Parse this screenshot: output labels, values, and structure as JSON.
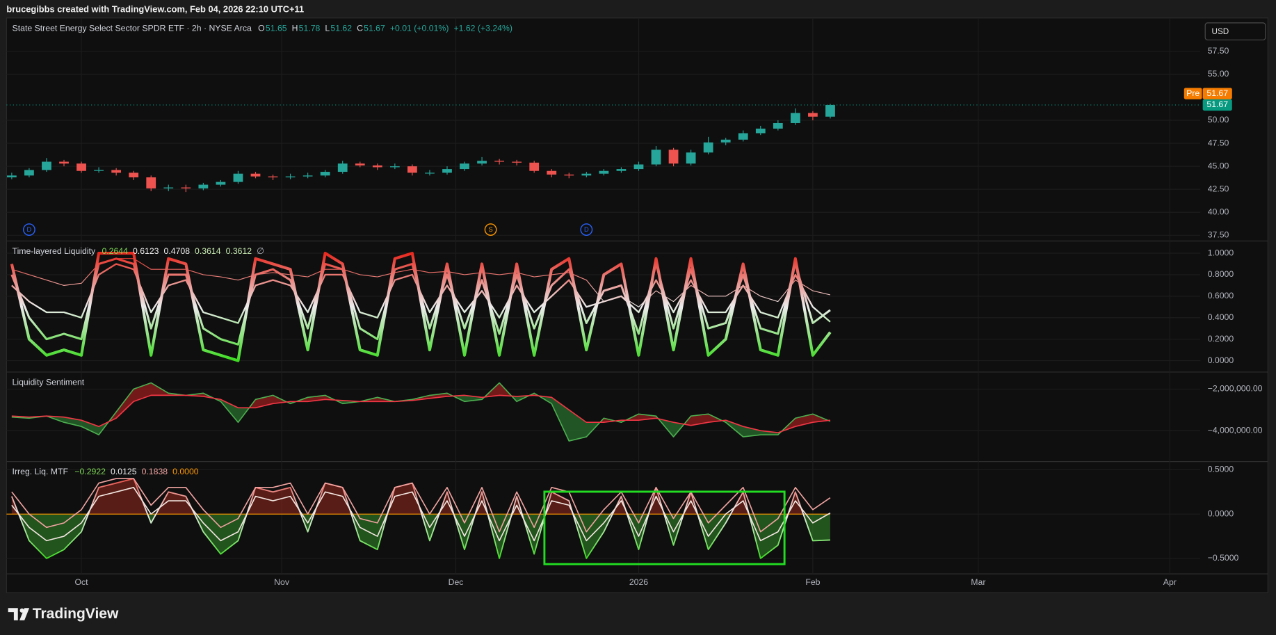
{
  "header": {
    "caption": "brucegibbs created with TradingView.com, Feb 04, 2026 22:10 UTC+11"
  },
  "toolbar": {
    "currency": "USD"
  },
  "footer": {
    "brand": "TradingView"
  },
  "chart_data": [
    {
      "type": "candlestick",
      "title": "State Street Energy Select Sector SPDR ETF · 2h · NYSE Arca",
      "ohlc_legend": [
        {
          "label": "O",
          "value": "51.65"
        },
        {
          "label": "H",
          "value": "51.78"
        },
        {
          "label": "L",
          "value": "51.62"
        },
        {
          "label": "C",
          "value": "51.67"
        }
      ],
      "changes": [
        "+0.01 (+0.01%)",
        "+1.62 (+3.24%)"
      ],
      "legend_value_color": "#26a69a",
      "x": [
        -8,
        -6,
        -4,
        -2,
        0,
        2,
        4,
        6,
        8,
        10,
        12,
        14,
        16,
        18,
        20,
        22,
        24,
        26,
        28,
        30,
        32,
        34,
        36,
        38,
        40,
        42,
        44,
        46,
        48,
        50,
        52,
        54,
        56,
        58,
        60,
        62,
        64,
        66,
        68,
        70,
        72,
        74,
        76,
        78,
        80,
        82,
        84,
        86
      ],
      "open": [
        43.8,
        44.0,
        44.6,
        45.5,
        45.3,
        44.5,
        44.6,
        44.3,
        43.8,
        42.6,
        42.7,
        42.6,
        43.0,
        43.3,
        44.2,
        43.9,
        43.8,
        43.9,
        44.0,
        44.4,
        45.3,
        45.1,
        44.9,
        45.0,
        44.3,
        44.3,
        44.7,
        45.3,
        45.6,
        45.5,
        45.4,
        44.5,
        44.1,
        44.0,
        44.2,
        44.5,
        44.7,
        45.2,
        46.8,
        45.3,
        46.5,
        47.6,
        47.9,
        48.6,
        49.1,
        49.7,
        50.8,
        50.4
      ],
      "high": [
        44.3,
        44.8,
        45.9,
        45.7,
        45.5,
        44.9,
        44.8,
        44.5,
        44.0,
        43.0,
        43.0,
        43.2,
        43.5,
        44.5,
        44.4,
        44.1,
        44.2,
        44.3,
        44.6,
        45.6,
        45.5,
        45.3,
        45.3,
        45.2,
        44.6,
        45.0,
        45.5,
        46.0,
        45.8,
        45.7,
        45.6,
        44.7,
        44.3,
        44.4,
        44.7,
        44.9,
        45.5,
        47.2,
        47.0,
        46.8,
        48.2,
        48.1,
        48.9,
        49.4,
        50.0,
        51.3,
        51.0,
        51.78
      ],
      "low": [
        43.6,
        43.8,
        44.4,
        45.0,
        44.3,
        44.3,
        44.0,
        43.5,
        42.3,
        42.3,
        42.2,
        42.4,
        42.8,
        43.1,
        43.7,
        43.5,
        43.6,
        43.7,
        43.8,
        44.2,
        44.9,
        44.6,
        44.7,
        44.0,
        44.0,
        44.1,
        44.5,
        45.1,
        45.2,
        45.1,
        44.3,
        43.8,
        43.7,
        43.8,
        44.0,
        44.3,
        44.5,
        45.0,
        45.0,
        45.1,
        46.3,
        47.3,
        47.7,
        48.4,
        48.9,
        49.5,
        50.0,
        50.2
      ],
      "close": [
        44.0,
        44.6,
        45.5,
        45.3,
        44.5,
        44.6,
        44.3,
        43.8,
        42.6,
        42.7,
        42.6,
        43.0,
        43.3,
        44.2,
        43.9,
        43.8,
        43.9,
        44.0,
        44.4,
        45.3,
        45.1,
        44.9,
        45.0,
        44.3,
        44.3,
        44.7,
        45.3,
        45.6,
        45.5,
        45.4,
        44.5,
        44.1,
        44.0,
        44.2,
        44.5,
        44.7,
        45.2,
        46.8,
        45.3,
        46.5,
        47.6,
        47.9,
        48.6,
        49.1,
        49.7,
        50.8,
        50.4,
        51.67
      ],
      "up_color": "#26a69a",
      "down_color": "#ef5350",
      "xlim": [
        -8.6,
        128.5
      ],
      "xticks": [
        {
          "value": 0,
          "label": "Oct"
        },
        {
          "value": 23,
          "label": "Nov"
        },
        {
          "value": 43,
          "label": "Dec"
        },
        {
          "value": 64,
          "label": "2026"
        },
        {
          "value": 84,
          "label": "Feb"
        },
        {
          "value": 103,
          "label": "Mar"
        },
        {
          "value": 125,
          "label": "Apr"
        }
      ],
      "ylim": [
        36.88,
        61.13
      ],
      "yticks": [
        {
          "value": 37.5,
          "label": "37.50"
        },
        {
          "value": 40,
          "label": "40.00"
        },
        {
          "value": 42.5,
          "label": "42.50"
        },
        {
          "value": 45,
          "label": "45.00"
        },
        {
          "value": 47.5,
          "label": "47.50"
        },
        {
          "value": 50,
          "label": "50.00"
        },
        {
          "value": 55,
          "label": "55.00"
        },
        {
          "value": 57.5,
          "label": "57.50"
        }
      ],
      "grid": true,
      "last_price": 51.67,
      "last_color": "#089981",
      "pre_tag": "Pre",
      "pre_price": 51.67,
      "pre_color": "#f57c00",
      "events": [
        {
          "x": -6,
          "label": "D",
          "color": "#2962ff"
        },
        {
          "x": 47,
          "label": "S",
          "color": "#ff9800"
        },
        {
          "x": 58,
          "label": "D",
          "color": "#2962ff"
        }
      ]
    },
    {
      "type": "line",
      "title": "Time-layered Liquidity",
      "legend_values": [
        "0.2644",
        "0.6123",
        "0.4708",
        "0.3614",
        "0.3612"
      ],
      "legend_colors": [
        "#7ed957",
        "#f0f0f0",
        "#f0f0f0",
        "#c5e8b0",
        "#c5e8b0"
      ],
      "legend_symbol": "∅",
      "colormap": [
        "#3ddc21",
        "#ececec",
        "#e8281e"
      ],
      "x": [
        -8,
        -6,
        -4,
        -2,
        0,
        2,
        4,
        6,
        8,
        10,
        12,
        14,
        16,
        18,
        20,
        22,
        24,
        26,
        28,
        30,
        32,
        34,
        36,
        38,
        40,
        42,
        44,
        46,
        48,
        50,
        52,
        54,
        56,
        58,
        60,
        62,
        64,
        66,
        68,
        70,
        72,
        74,
        76,
        78,
        80,
        82,
        84,
        86
      ],
      "series": [
        {
          "gradient": true,
          "values": [
            0.9,
            0.2,
            0.05,
            0.1,
            0.05,
            1.0,
            1.0,
            1.0,
            0.05,
            0.95,
            0.9,
            0.1,
            0.05,
            0.0,
            0.95,
            0.9,
            0.85,
            0.1,
            1.0,
            0.9,
            0.1,
            0.05,
            0.95,
            1.0,
            0.1,
            0.9,
            0.05,
            0.9,
            0.05,
            0.9,
            0.05,
            0.85,
            0.95,
            0.1,
            0.8,
            0.9,
            0.05,
            0.95,
            0.1,
            0.95,
            0.05,
            0.2,
            0.9,
            0.1,
            0.05,
            0.95,
            0.05,
            0.2644
          ]
        },
        {
          "gradient": true,
          "values": [
            0.8,
            0.4,
            0.2,
            0.25,
            0.2,
            0.9,
            0.95,
            0.9,
            0.3,
            0.8,
            0.8,
            0.3,
            0.2,
            0.15,
            0.8,
            0.85,
            0.75,
            0.3,
            0.9,
            0.85,
            0.3,
            0.2,
            0.85,
            0.9,
            0.3,
            0.8,
            0.3,
            0.75,
            0.25,
            0.8,
            0.3,
            0.7,
            0.85,
            0.35,
            0.65,
            0.7,
            0.25,
            0.9,
            0.3,
            0.85,
            0.3,
            0.35,
            0.8,
            0.3,
            0.25,
            0.9,
            0.35,
            0.4708
          ]
        },
        {
          "gradient": true,
          "values": [
            0.7,
            0.55,
            0.45,
            0.45,
            0.4,
            0.8,
            0.9,
            0.85,
            0.45,
            0.7,
            0.75,
            0.45,
            0.4,
            0.35,
            0.7,
            0.75,
            0.7,
            0.45,
            0.8,
            0.8,
            0.45,
            0.4,
            0.75,
            0.8,
            0.45,
            0.7,
            0.45,
            0.65,
            0.4,
            0.7,
            0.45,
            0.6,
            0.75,
            0.5,
            0.55,
            0.6,
            0.45,
            0.75,
            0.45,
            0.75,
            0.45,
            0.45,
            0.7,
            0.45,
            0.4,
            0.8,
            0.5,
            0.3614
          ]
        },
        {
          "gradient": true,
          "values": [
            0.85,
            0.8,
            0.75,
            0.7,
            0.72,
            0.9,
            0.95,
            0.95,
            0.85,
            0.85,
            0.85,
            0.8,
            0.78,
            0.75,
            0.8,
            0.82,
            0.8,
            0.78,
            0.85,
            0.85,
            0.8,
            0.78,
            0.82,
            0.85,
            0.82,
            0.83,
            0.8,
            0.82,
            0.8,
            0.82,
            0.78,
            0.8,
            0.82,
            0.75,
            0.55,
            0.6,
            0.5,
            0.65,
            0.55,
            0.7,
            0.6,
            0.6,
            0.7,
            0.6,
            0.55,
            0.75,
            0.65,
            0.6123
          ]
        }
      ],
      "ylim": [
        -0.106,
        1.114
      ],
      "yticks": [
        {
          "value": 0,
          "label": "0.0000"
        },
        {
          "value": 0.2,
          "label": "0.2000"
        },
        {
          "value": 0.4,
          "label": "0.4000"
        },
        {
          "value": 0.6,
          "label": "0.6000"
        },
        {
          "value": 0.8,
          "label": "0.8000"
        },
        {
          "value": 1,
          "label": "1.0000"
        }
      ],
      "grid": true
    },
    {
      "type": "line",
      "title": "Liquidity Sentiment",
      "x": [
        -8,
        -6,
        -4,
        -2,
        0,
        2,
        4,
        6,
        8,
        10,
        12,
        14,
        16,
        18,
        20,
        22,
        24,
        26,
        28,
        30,
        32,
        34,
        36,
        38,
        40,
        42,
        44,
        46,
        48,
        50,
        52,
        54,
        56,
        58,
        60,
        62,
        64,
        66,
        68,
        70,
        72,
        74,
        76,
        78,
        80,
        82,
        84,
        86
      ],
      "series": [
        {
          "color": "#4caf50",
          "values": [
            -3350000,
            -3400000,
            -3300000,
            -3600000,
            -3800000,
            -4200000,
            -3100000,
            -2000000,
            -1700000,
            -2200000,
            -2300000,
            -2200000,
            -2600000,
            -3600000,
            -2500000,
            -2300000,
            -2700000,
            -2400000,
            -2300000,
            -2700000,
            -2600000,
            -2400000,
            -2600000,
            -2500000,
            -2300000,
            -2200000,
            -2600000,
            -2500000,
            -1700000,
            -2600000,
            -2200000,
            -2700000,
            -4500000,
            -4300000,
            -3400000,
            -3600000,
            -3200000,
            -3300000,
            -4300000,
            -3300000,
            -3200000,
            -3600000,
            -4300000,
            -4200000,
            -4200000,
            -3400000,
            -3200000,
            -3550000
          ]
        },
        {
          "color": "#f23645",
          "values": [
            -3300000,
            -3350000,
            -3300000,
            -3350000,
            -3500000,
            -3800000,
            -3400000,
            -2600000,
            -2300000,
            -2300000,
            -2300000,
            -2350000,
            -2500000,
            -2900000,
            -2900000,
            -2700000,
            -2600000,
            -2600000,
            -2500000,
            -2550000,
            -2600000,
            -2600000,
            -2600000,
            -2550000,
            -2450000,
            -2350000,
            -2300000,
            -2400000,
            -2300000,
            -2350000,
            -2300000,
            -2400000,
            -3000000,
            -3600000,
            -3600000,
            -3500000,
            -3500000,
            -3400000,
            -3600000,
            -3750000,
            -3600000,
            -3500000,
            -3800000,
            -4000000,
            -4100000,
            -3800000,
            -3600000,
            -3500000
          ]
        }
      ],
      "fill_between": [
        0,
        1
      ],
      "fill_up": "rgba(150,30,30,0.75)",
      "fill_down": "rgba(40,110,45,0.75)",
      "ylim": [
        -5490000,
        -1180000
      ],
      "yticks": [
        {
          "value": -4000000,
          "label": "−4,000,000.00"
        },
        {
          "value": -2000000,
          "label": "−2,000,000.00"
        }
      ],
      "grid": true
    },
    {
      "type": "line",
      "title": "Irreg. Liq. MTF",
      "legend_values": [
        "−0.2922",
        "0.0125",
        "0.1838",
        "0.0000"
      ],
      "legend_colors": [
        "#7ed957",
        "#f0f0f0",
        "#f0a3a0",
        "#ff9800"
      ],
      "colormap": [
        "#3ddc21",
        "#ececec",
        "#e8281e"
      ],
      "x": [
        -8,
        -6,
        -4,
        -2,
        0,
        2,
        4,
        6,
        8,
        10,
        12,
        14,
        16,
        18,
        20,
        22,
        24,
        26,
        28,
        30,
        32,
        34,
        36,
        38,
        40,
        42,
        44,
        46,
        48,
        50,
        52,
        54,
        56,
        58,
        60,
        62,
        64,
        66,
        68,
        70,
        72,
        74,
        76,
        78,
        80,
        82,
        84,
        86
      ],
      "series": [
        {
          "gradient": true,
          "values": [
            0.2,
            -0.3,
            -0.5,
            -0.4,
            -0.2,
            0.3,
            0.35,
            0.4,
            -0.1,
            0.25,
            0.2,
            -0.2,
            -0.45,
            -0.3,
            0.3,
            0.25,
            0.3,
            -0.2,
            0.35,
            0.3,
            -0.3,
            -0.4,
            0.3,
            0.35,
            -0.3,
            0.25,
            -0.4,
            0.25,
            -0.5,
            0.2,
            -0.45,
            0.25,
            0.15,
            -0.5,
            -0.2,
            0.2,
            -0.4,
            0.3,
            -0.35,
            0.25,
            -0.4,
            -0.1,
            0.25,
            -0.5,
            -0.35,
            0.25,
            -0.3,
            -0.2922
          ]
        },
        {
          "color": "#f2e6e0",
          "values": [
            0.1,
            -0.15,
            -0.3,
            -0.25,
            -0.1,
            0.2,
            0.25,
            0.3,
            0.0,
            0.15,
            0.15,
            -0.1,
            -0.3,
            -0.2,
            0.2,
            0.15,
            0.2,
            -0.1,
            0.25,
            0.2,
            -0.15,
            -0.25,
            0.2,
            0.25,
            -0.15,
            0.15,
            -0.25,
            0.15,
            -0.3,
            0.1,
            -0.3,
            0.15,
            0.1,
            -0.3,
            -0.1,
            0.15,
            -0.25,
            0.2,
            -0.2,
            0.15,
            -0.25,
            0.0,
            0.15,
            -0.3,
            -0.2,
            0.15,
            -0.1,
            0.0125
          ]
        },
        {
          "color": "#f0a3a0",
          "values": [
            0.25,
            0.0,
            -0.15,
            -0.1,
            0.05,
            0.35,
            0.4,
            0.4,
            0.1,
            0.3,
            0.3,
            0.05,
            -0.15,
            -0.05,
            0.3,
            0.3,
            0.35,
            0.0,
            0.35,
            0.3,
            -0.05,
            -0.1,
            0.3,
            0.35,
            0.0,
            0.3,
            -0.1,
            0.3,
            -0.2,
            0.25,
            -0.15,
            0.3,
            0.25,
            -0.2,
            0.05,
            0.25,
            -0.1,
            0.3,
            -0.05,
            0.25,
            -0.1,
            0.1,
            0.3,
            -0.2,
            -0.05,
            0.3,
            0.05,
            0.1838
          ]
        }
      ],
      "fill_to_zero": 0,
      "fill_up": "rgba(150,40,30,0.55)",
      "fill_down": "rgba(50,140,40,0.55)",
      "hline": 0,
      "hline_color": "#ff9800",
      "ylim": [
        -0.674,
        0.592
      ],
      "yticks": [
        {
          "value": -0.5,
          "label": "−0.5000"
        },
        {
          "value": 0,
          "label": "0.0000"
        },
        {
          "value": 0.5,
          "label": "0.5000"
        }
      ],
      "grid": true
    }
  ]
}
